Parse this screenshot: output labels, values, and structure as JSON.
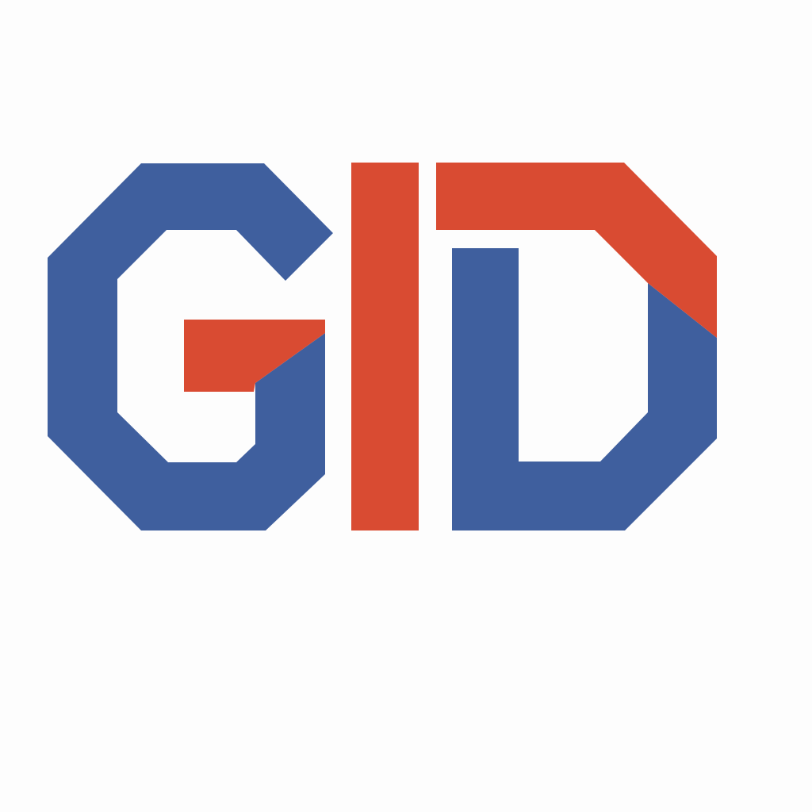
{
  "logo": {
    "text": "GID",
    "colors": {
      "background": "#fdfdfd",
      "blue": "#3f5f9e",
      "red": "#d94b32"
    }
  }
}
